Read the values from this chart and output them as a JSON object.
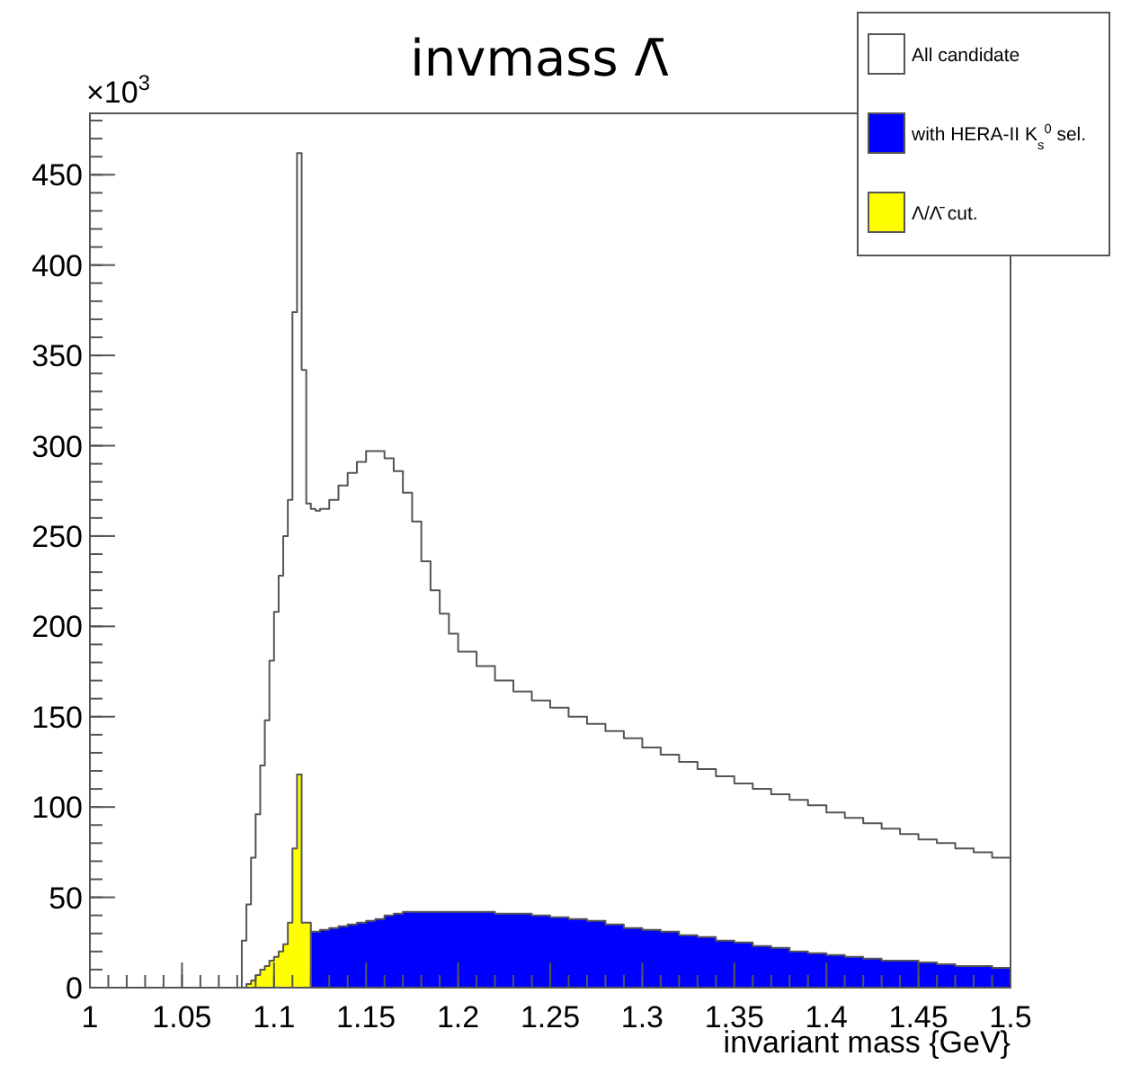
{
  "chart_data": {
    "type": "histogram",
    "title": "invmass Λ̄",
    "xlabel": "invariant mass {GeV}",
    "annotations": [
      "×10$^{3}$"
    ],
    "bins": [
      1.0,
      1.0825,
      1.085,
      1.0875,
      1.09,
      1.0925,
      1.095,
      1.0975,
      1.1,
      1.1025,
      1.105,
      1.1075,
      1.11,
      1.1125,
      1.115,
      1.1175,
      1.12,
      1.1225,
      1.125,
      1.13,
      1.135,
      1.14,
      1.145,
      1.15,
      1.155,
      1.16,
      1.165,
      1.17,
      1.175,
      1.18,
      1.185,
      1.19,
      1.195,
      1.2,
      1.21,
      1.22,
      1.23,
      1.24,
      1.25,
      1.26,
      1.27,
      1.28,
      1.29,
      1.3,
      1.31,
      1.32,
      1.33,
      1.34,
      1.35,
      1.36,
      1.37,
      1.38,
      1.39,
      1.4,
      1.41,
      1.42,
      1.43,
      1.44,
      1.45,
      1.46,
      1.47,
      1.48,
      1.49,
      1.5
    ],
    "series": [
      {
        "name": "All candidate",
        "color": "#ffffff",
        "values": [
          0,
          26,
          46,
          72,
          96,
          123,
          148,
          181,
          208,
          228,
          250,
          270,
          374,
          462,
          342,
          268,
          265,
          264,
          265,
          270,
          278,
          285,
          291,
          297,
          297,
          293,
          286,
          274,
          258,
          236,
          220,
          207,
          196,
          186,
          178,
          170,
          164,
          159,
          155,
          150,
          146,
          142,
          138,
          133,
          129,
          125,
          121,
          117,
          113,
          110,
          107,
          104,
          101,
          97,
          94,
          91,
          88,
          85,
          82,
          80,
          77,
          75,
          72
        ]
      },
      {
        "name": "with HERA-II K$_{s}$$^{0}$ sel.",
        "color": "#0000ff",
        "values": [
          0,
          0,
          0,
          0,
          0,
          0,
          0,
          0,
          0,
          0,
          0,
          0,
          0,
          0,
          0,
          0,
          31,
          31,
          32,
          33,
          34,
          35,
          36,
          37,
          38,
          40,
          41,
          42,
          42,
          42,
          42,
          42,
          42,
          42,
          42,
          41,
          41,
          40,
          39,
          38,
          37,
          35,
          33,
          32,
          31,
          29,
          28,
          26,
          25,
          23,
          22,
          20,
          19,
          18,
          17,
          16,
          15,
          15,
          14,
          13,
          12,
          12,
          11
        ]
      },
      {
        "name": "Λ/Λ̄ cut.",
        "color": "#ffff00",
        "values": [
          0,
          0,
          2,
          4,
          7,
          10,
          12,
          15,
          17,
          20,
          24,
          36,
          77,
          118,
          36,
          36,
          0,
          0,
          0,
          0,
          0,
          0,
          0,
          0,
          0,
          0,
          0,
          0,
          0,
          0,
          0,
          0,
          0,
          0,
          0,
          0,
          0,
          0,
          0,
          0,
          0,
          0,
          0,
          0,
          0,
          0,
          0,
          0,
          0,
          0,
          0,
          0,
          0,
          0,
          0,
          0,
          0,
          0,
          0,
          0,
          0,
          0,
          0
        ]
      }
    ],
    "xlim": [
      1,
      1.5
    ],
    "xticks": [
      1,
      1.05,
      1.1,
      1.15,
      1.2,
      1.25,
      1.3,
      1.35,
      1.4,
      1.45,
      1.5
    ],
    "ylim": [
      0,
      484
    ],
    "yticks": [
      0,
      50,
      100,
      150,
      200,
      250,
      300,
      350,
      400,
      450
    ],
    "legend": "top right"
  }
}
